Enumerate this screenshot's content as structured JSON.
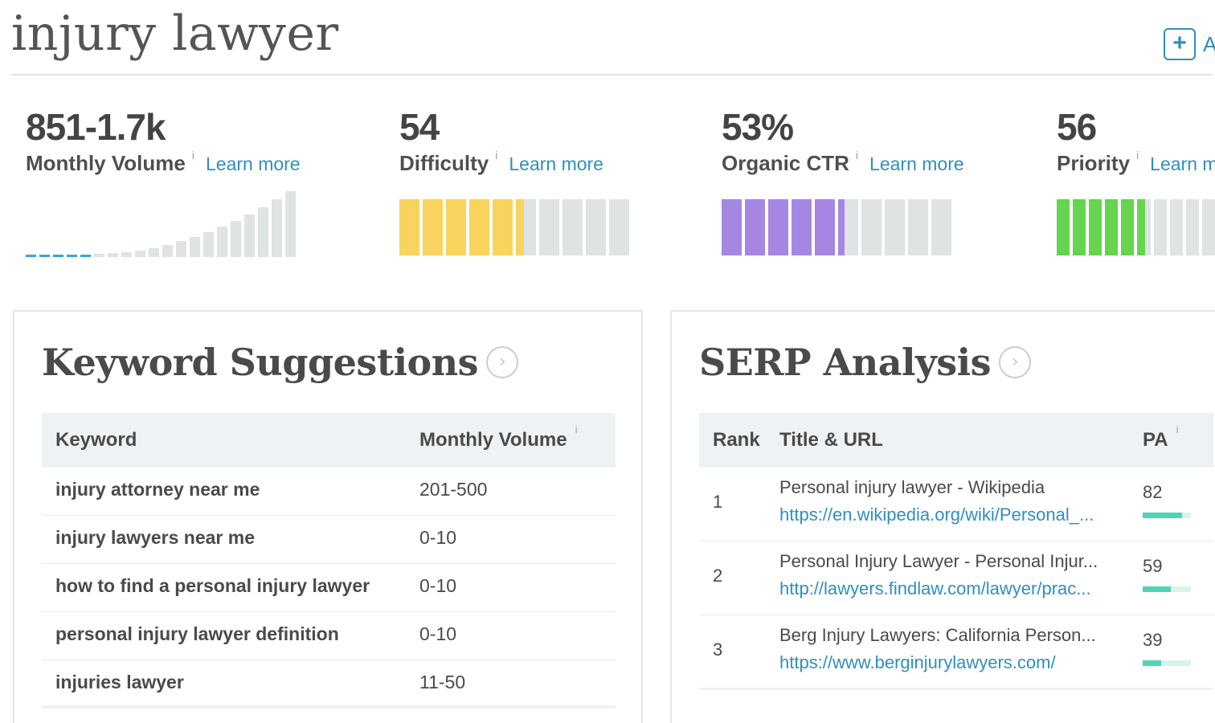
{
  "page": {
    "title": "injury lawyer",
    "add_button_text": "A"
  },
  "metrics": [
    {
      "value": "851-1.7k",
      "label": "Monthly Volume",
      "learn": "Learn more"
    },
    {
      "value": "54",
      "label": "Difficulty",
      "learn": "Learn more",
      "level": 54,
      "color": "#f8d45e"
    },
    {
      "value": "53%",
      "label": "Organic CTR",
      "learn": "Learn more",
      "level": 53,
      "color": "#a587e3"
    },
    {
      "value": "56",
      "label": "Priority",
      "learn": "Learn more",
      "level": 56,
      "color": "#66d44e"
    }
  ],
  "info_glyph": "i",
  "keyword_suggestions": {
    "title": "Keyword Suggestions",
    "arrow": "›",
    "columns": [
      "Keyword",
      "Monthly Volume"
    ],
    "rows": [
      {
        "keyword": "injury attorney near me",
        "volume": "201-500"
      },
      {
        "keyword": "injury lawyers near me",
        "volume": "0-10"
      },
      {
        "keyword": "how to find a personal injury lawyer",
        "volume": "0-10"
      },
      {
        "keyword": "personal injury lawyer definition",
        "volume": "0-10"
      },
      {
        "keyword": "injuries lawyer",
        "volume": "11-50"
      }
    ]
  },
  "serp_analysis": {
    "title": "SERP Analysis",
    "arrow": "›",
    "columns": [
      "Rank",
      "Title & URL",
      "PA"
    ],
    "rows": [
      {
        "rank": "1",
        "title": "Personal injury lawyer - Wikipedia",
        "url": "https://en.wikipedia.org/wiki/Personal_...",
        "pa": "82",
        "pa_value": 82
      },
      {
        "rank": "2",
        "title": "Personal Injury Lawyer - Personal Injur...",
        "url": "http://lawyers.findlaw.com/lawyer/prac...",
        "pa": "59",
        "pa_value": 59
      },
      {
        "rank": "3",
        "title": "Berg Injury Lawyers: California Person...",
        "url": "https://www.berginjurylawyers.com/",
        "pa": "39",
        "pa_value": 39
      }
    ]
  }
}
